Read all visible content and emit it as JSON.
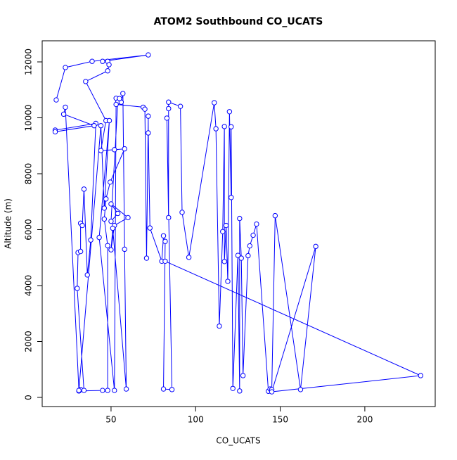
{
  "chart_data": {
    "type": "scatter",
    "title": "ATOM2 Southbound CO_UCATS",
    "x_label": "CO_UCATS",
    "y_label": "Altitude (m)",
    "color": "#0000ff",
    "connect": true,
    "xlim": [
      9.3,
      241.6
    ],
    "ylim": [
      -327,
      12755
    ],
    "xticks": [
      50,
      100,
      150,
      200
    ],
    "yticks": [
      0,
      2000,
      4000,
      6000,
      8000,
      10000,
      12000
    ],
    "x": [
      17.6,
      23,
      38.8,
      72,
      45,
      48,
      48.8,
      48,
      35,
      47,
      44,
      52,
      58,
      49.5,
      47,
      46,
      48,
      48,
      45,
      31,
      32,
      34,
      30,
      30.5,
      32,
      32,
      33,
      34,
      36,
      38,
      41,
      17,
      17,
      40,
      22,
      23,
      31,
      44,
      46,
      49,
      43,
      52,
      53,
      54,
      50,
      54,
      50,
      60,
      52,
      50,
      51,
      59,
      58,
      57,
      56,
      55,
      53,
      69,
      70,
      71,
      72,
      72,
      73,
      80,
      81,
      82,
      81,
      86,
      83,
      84,
      84,
      84,
      91,
      92,
      96,
      111,
      112,
      114,
      116,
      117,
      117,
      118,
      119,
      120,
      121,
      121,
      122,
      125,
      126,
      126,
      127,
      128,
      131,
      132,
      134,
      136,
      143,
      144,
      145,
      147,
      162,
      171,
      145,
      233,
      82
    ],
    "values": [
      10640,
      11800,
      12020,
      12250,
      12020,
      12020,
      11900,
      11680,
      11300,
      9900,
      8830,
      8860,
      8890,
      7700,
      7100,
      6380,
      5430,
      250,
      250,
      230,
      280,
      250,
      3900,
      5180,
      5220,
      6230,
      6150,
      7450,
      4380,
      5630,
      9800,
      9560,
      9500,
      9720,
      10130,
      10380,
      250,
      9720,
      6770,
      9900,
      5720,
      250,
      10700,
      10570,
      6300,
      6580,
      6920,
      6430,
      6150,
      5280,
      6050,
      300,
      5300,
      10870,
      10560,
      10690,
      10480,
      10380,
      10310,
      4980,
      10060,
      9460,
      6060,
      4870,
      5780,
      5580,
      300,
      280,
      9990,
      6430,
      10330,
      10560,
      10410,
      6620,
      5010,
      10540,
      9610,
      2550,
      5930,
      9690,
      4860,
      6150,
      4150,
      10220,
      7150,
      9680,
      320,
      5080,
      230,
      6400,
      4980,
      780,
      5070,
      5420,
      5800,
      6200,
      220,
      300,
      280,
      6500,
      280,
      5400,
      200,
      780,
      4870
    ]
  }
}
